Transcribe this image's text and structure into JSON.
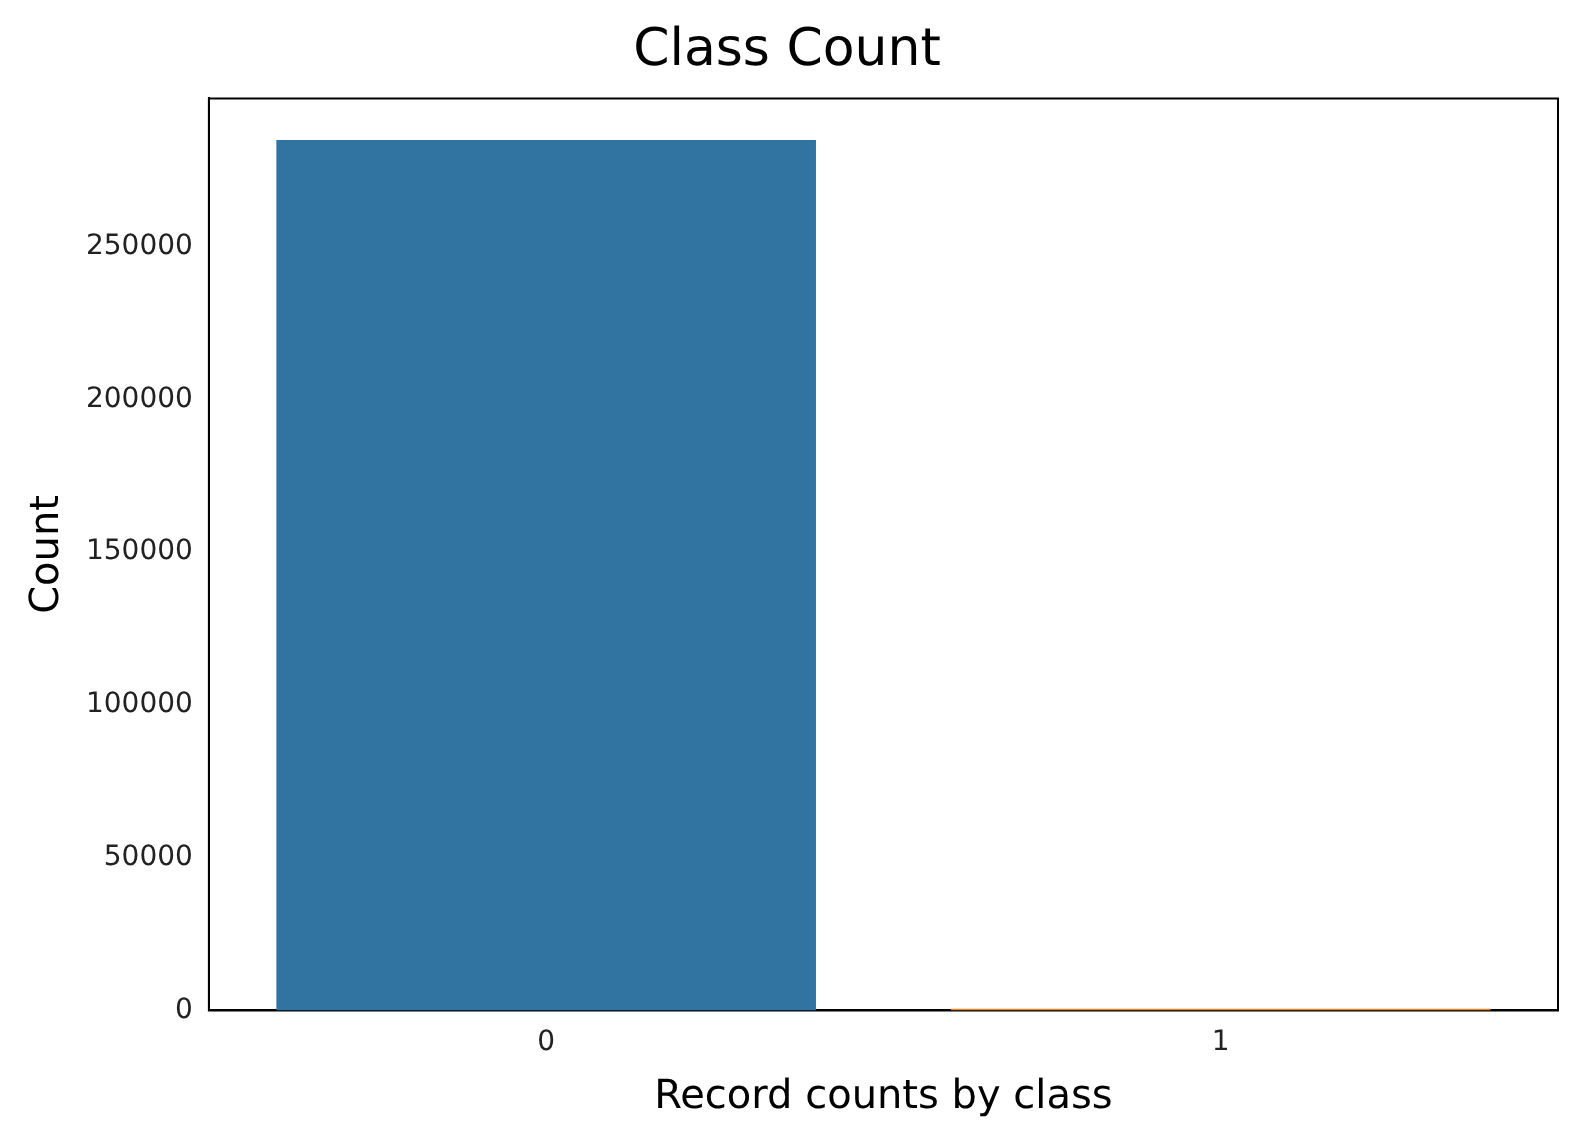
{
  "chart_data": {
    "type": "bar",
    "title": "Class Count",
    "xlabel": "Record counts by class",
    "ylabel": "Count",
    "categories": [
      "0",
      "1"
    ],
    "values": [
      284900,
      500
    ],
    "colors": [
      "#3274a1",
      "#e1812c"
    ],
    "ylim": [
      0,
      298500
    ],
    "yticks": [
      0,
      50000,
      100000,
      150000,
      200000,
      250000
    ],
    "grid": false,
    "legend": false
  }
}
